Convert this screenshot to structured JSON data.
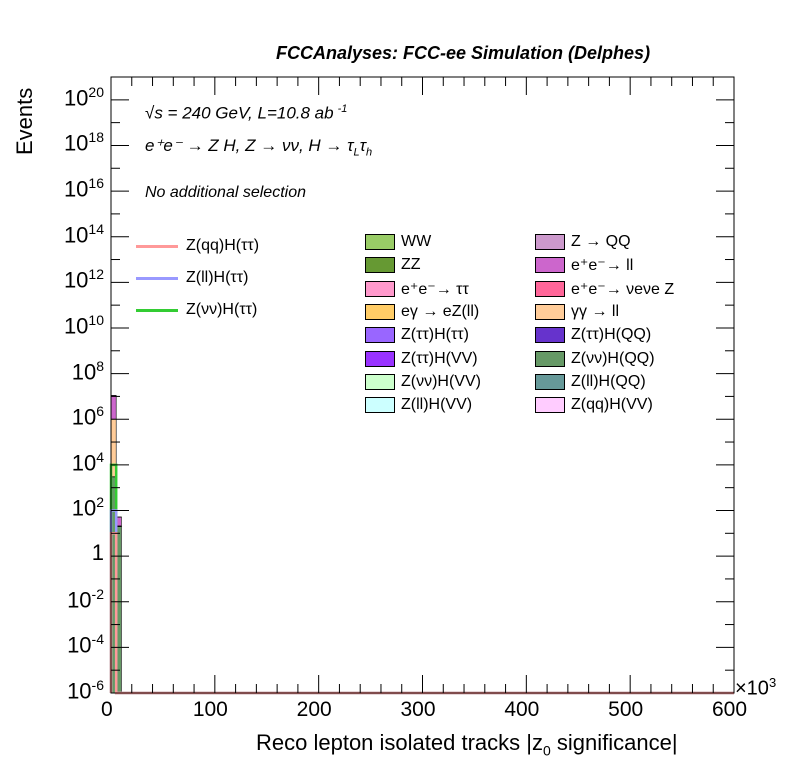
{
  "header": {
    "title": "FCCAnalyses: FCC-ee Simulation (Delphes)",
    "energy_text": "√s = 240 GeV, L=10.8 ab",
    "lumi_exp": "-1",
    "process_text": "e⁺e⁻ → Z H, Z → νν, H → τ",
    "process_sub_L": "L",
    "process_tau2": "τ",
    "process_sub_h": "h",
    "selection_text": "No additional selection"
  },
  "axes": {
    "ylabel": "Events",
    "xlabel": "Reco lepton isolated tracks |z",
    "xlabel_sub": "0",
    "xlabel_tail": " significance|",
    "x_multiplier": "×10",
    "x_multiplier_exp": "3",
    "x_ticks": [
      "0",
      "100",
      "200",
      "300",
      "400",
      "500",
      "600"
    ],
    "y_ticks": [
      {
        "base": "10",
        "exp": "20"
      },
      {
        "base": "10",
        "exp": "18"
      },
      {
        "base": "10",
        "exp": "16"
      },
      {
        "base": "10",
        "exp": "14"
      },
      {
        "base": "10",
        "exp": "12"
      },
      {
        "base": "10",
        "exp": "10"
      },
      {
        "base": "10",
        "exp": "8"
      },
      {
        "base": "10",
        "exp": "6"
      },
      {
        "base": "10",
        "exp": "4"
      },
      {
        "base": "10",
        "exp": "2"
      },
      {
        "base": "1",
        "exp": ""
      },
      {
        "base": "10",
        "exp": "-2"
      },
      {
        "base": "10",
        "exp": "-4"
      },
      {
        "base": "10",
        "exp": "-6"
      }
    ]
  },
  "legend_lines": [
    {
      "label": "Z(qq)H(ττ)",
      "color": "#ff9999"
    },
    {
      "label": "Z(ll)H(ττ)",
      "color": "#9999ff"
    },
    {
      "label": "Z(νν)H(ττ)",
      "color": "#33cc33"
    }
  ],
  "legend_fill_col1": [
    {
      "label": "WW",
      "color": "#99cc66"
    },
    {
      "label": "ZZ",
      "color": "#669933"
    },
    {
      "label": "e⁺e⁻→ ττ",
      "color": "#ff99cc"
    },
    {
      "label": "eγ → eZ(ll)",
      "color": "#ffcc66"
    },
    {
      "label": "Z(ττ)H(ττ)",
      "color": "#9966ff"
    },
    {
      "label": "Z(ττ)H(VV)",
      "color": "#9933ff"
    },
    {
      "label": "Z(νν)H(VV)",
      "color": "#ccffcc"
    },
    {
      "label": "Z(ll)H(VV)",
      "color": "#ccffff"
    }
  ],
  "legend_fill_col2": [
    {
      "label": "Z → QQ",
      "color": "#cc99cc"
    },
    {
      "label": "e⁺e⁻→ ll",
      "color": "#cc66cc"
    },
    {
      "label": "e⁺e⁻→ νeνe Z",
      "color": "#ff6699"
    },
    {
      "label": "γγ → ll",
      "color": "#ffcc99"
    },
    {
      "label": "Z(ττ)H(QQ)",
      "color": "#6633cc"
    },
    {
      "label": "Z(νν)H(QQ)",
      "color": "#669966"
    },
    {
      "label": "Z(ll)H(QQ)",
      "color": "#669999"
    },
    {
      "label": "Z(qq)H(VV)",
      "color": "#ffccff"
    }
  ],
  "chart_data": {
    "type": "bar",
    "title": "FCCAnalyses: FCC-ee Simulation (Delphes)",
    "xlabel": "Reco lepton isolated tracks |z0 significance|",
    "ylabel": "Events",
    "x_unit_multiplier": 1000,
    "xlim": [
      0,
      600
    ],
    "ylim": [
      1e-06,
      1e+21
    ],
    "yscale": "log",
    "stacked": true,
    "bins_x": [
      0,
      5
    ],
    "series": [
      {
        "name": "Z(νν)H(QQ)",
        "values": [
          3000,
          20
        ]
      },
      {
        "name": "Z(ττ)H(QQ)",
        "values": [
          1,
          0.01
        ]
      },
      {
        "name": "Z(ll)H(VV)",
        "values": [
          10,
          0.1
        ]
      },
      {
        "name": "γγ → ll",
        "values": [
          1000000,
          1
        ]
      },
      {
        "name": "e⁺e⁻→ ll",
        "values": [
          10000000,
          30
        ]
      },
      {
        "name": "WW",
        "values": [
          100,
          1
        ]
      }
    ],
    "signal_lines": [
      {
        "name": "Z(νν)H(ττ)",
        "values": [
          10000,
          1e-06
        ]
      },
      {
        "name": "Z(ll)H(ττ)",
        "values": [
          100,
          1e-06
        ]
      },
      {
        "name": "Z(qq)H(ττ)",
        "values": [
          10,
          1e-06
        ]
      }
    ],
    "grid": false,
    "legend_placement": "top-right"
  }
}
